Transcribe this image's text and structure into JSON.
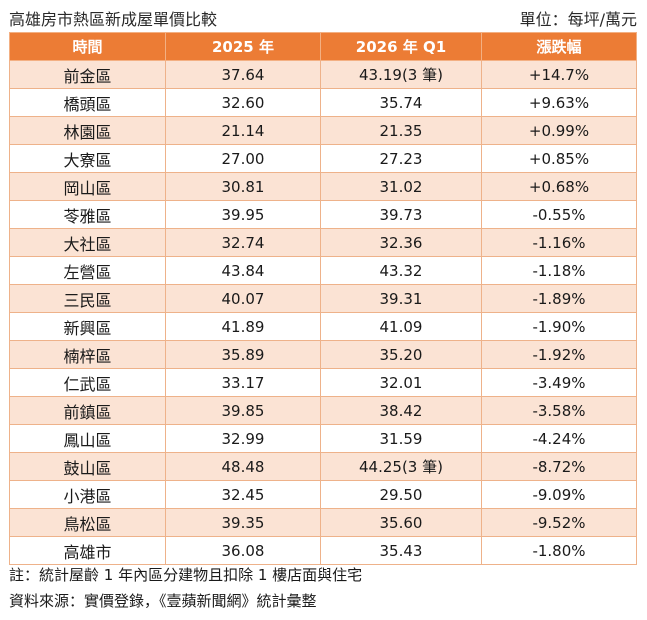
{
  "caption": {
    "title": "高雄房市熱區新成屋單價比較",
    "unit": "單位：每坪/萬元"
  },
  "headers": [
    "時間",
    "2025 年",
    "2026 年 Q1",
    "漲跌幅"
  ],
  "rows": [
    {
      "district": "前金區",
      "y2025": "37.64",
      "y2026": "43.19(3 筆)",
      "change": "+14.7%"
    },
    {
      "district": "橋頭區",
      "y2025": "32.60",
      "y2026": "35.74",
      "change": "+9.63%"
    },
    {
      "district": "林園區",
      "y2025": "21.14",
      "y2026": "21.35",
      "change": "+0.99%"
    },
    {
      "district": "大寮區",
      "y2025": "27.00",
      "y2026": "27.23",
      "change": "+0.85%"
    },
    {
      "district": "岡山區",
      "y2025": "30.81",
      "y2026": "31.02",
      "change": "+0.68%"
    },
    {
      "district": "苓雅區",
      "y2025": "39.95",
      "y2026": "39.73",
      "change": "-0.55%"
    },
    {
      "district": "大社區",
      "y2025": "32.74",
      "y2026": "32.36",
      "change": "-1.16%"
    },
    {
      "district": "左營區",
      "y2025": "43.84",
      "y2026": "43.32",
      "change": "-1.18%"
    },
    {
      "district": "三民區",
      "y2025": "40.07",
      "y2026": "39.31",
      "change": "-1.89%"
    },
    {
      "district": "新興區",
      "y2025": "41.89",
      "y2026": "41.09",
      "change": "-1.90%"
    },
    {
      "district": "楠梓區",
      "y2025": "35.89",
      "y2026": "35.20",
      "change": "-1.92%"
    },
    {
      "district": "仁武區",
      "y2025": "33.17",
      "y2026": "32.01",
      "change": "-3.49%"
    },
    {
      "district": "前鎮區",
      "y2025": "39.85",
      "y2026": "38.42",
      "change": "-3.58%"
    },
    {
      "district": "鳳山區",
      "y2025": "32.99",
      "y2026": "31.59",
      "change": "-4.24%"
    },
    {
      "district": "鼓山區",
      "y2025": "48.48",
      "y2026": "44.25(3 筆)",
      "change": "-8.72%"
    },
    {
      "district": "小港區",
      "y2025": "32.45",
      "y2026": "29.50",
      "change": "-9.09%"
    },
    {
      "district": "鳥松區",
      "y2025": "39.35",
      "y2026": "35.60",
      "change": "-9.52%"
    },
    {
      "district": "高雄市",
      "y2025": "36.08",
      "y2026": "35.43",
      "change": "-1.80%"
    }
  ],
  "notes": {
    "note": "註：統計屋齡 1 年內區分建物且扣除 1 樓店面與住宅",
    "source": "資料來源：實價登錄，《壹蘋新聞網》統計彙整"
  },
  "colors": {
    "header_bg": "#ec7c35",
    "stripe": "#fbe3d4",
    "border": "#eeb28a"
  }
}
